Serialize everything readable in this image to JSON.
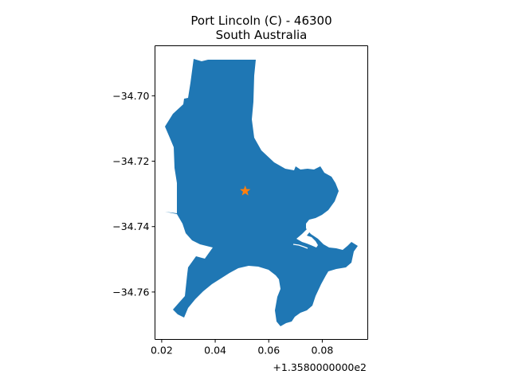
{
  "title_line1": "Port Lincoln (C) - 46300",
  "title_line2": "South Australia",
  "x_offset_label": "+1.3580000000e2",
  "colors": {
    "region_fill": "#1f77b4",
    "marker": "#ff7f0e",
    "axes": "#000000"
  },
  "chart_data": {
    "type": "map",
    "title": "Port Lincoln (C) - 46300\nSouth Australia",
    "xlim": [
      0.0175,
      0.097
    ],
    "ylim": [
      -34.7745,
      -34.6847
    ],
    "x_offset": 135.8,
    "x_ticks": [
      0.02,
      0.04,
      0.06,
      0.08
    ],
    "x_tick_labels": [
      "0.02",
      "0.04",
      "0.06",
      "0.08"
    ],
    "y_ticks": [
      -34.7,
      -34.72,
      -34.74,
      -34.76
    ],
    "y_tick_labels": [
      "−34.70",
      "−34.72",
      "−34.74",
      "−34.76"
    ],
    "grid": false,
    "marker": {
      "shape": "star",
      "x": 0.0512,
      "y": -34.7291
    }
  }
}
